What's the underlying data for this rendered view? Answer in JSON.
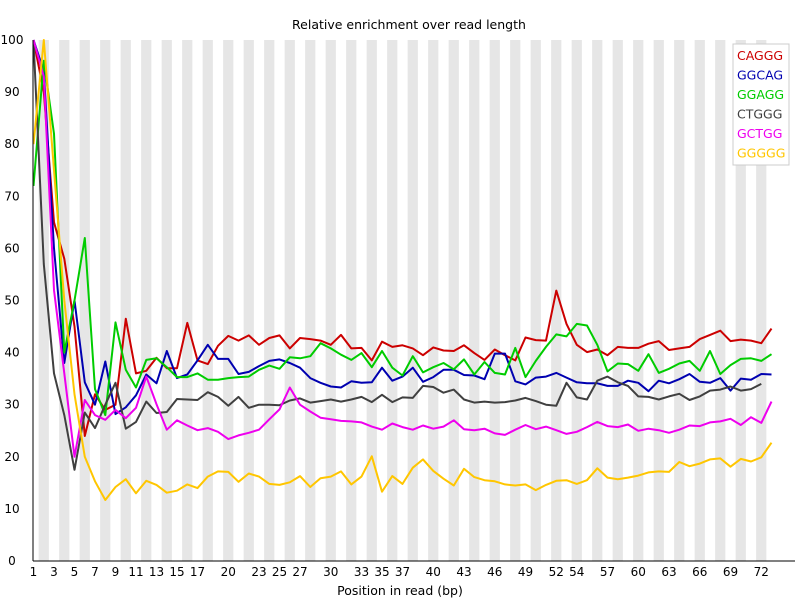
{
  "chart_data": {
    "type": "line",
    "title": "Relative enrichment over read length",
    "xlabel": "Position in read (bp)",
    "ylabel": "",
    "xlim": [
      1,
      72
    ],
    "ylim": [
      0,
      100
    ],
    "grid": "alternating vertical bands",
    "legend_position": "top-right",
    "x_tick_labels": [
      {
        "pos": 1,
        "label": "1"
      },
      {
        "pos": 3,
        "label": "3"
      },
      {
        "pos": 5,
        "label": "5"
      },
      {
        "pos": 7,
        "label": "7"
      },
      {
        "pos": 9,
        "label": "9"
      },
      {
        "pos": 11,
        "label": "11"
      },
      {
        "pos": 13,
        "label": "13"
      },
      {
        "pos": 15,
        "label": "15"
      },
      {
        "pos": 17,
        "label": "17"
      },
      {
        "pos": 20,
        "label": "20"
      },
      {
        "pos": 23,
        "label": "23"
      },
      {
        "pos": 25,
        "label": "25"
      },
      {
        "pos": 27,
        "label": "27"
      },
      {
        "pos": 30,
        "label": "30"
      },
      {
        "pos": 33,
        "label": "33"
      },
      {
        "pos": 35,
        "label": "35"
      },
      {
        "pos": 37,
        "label": "37"
      },
      {
        "pos": 40,
        "label": "40"
      },
      {
        "pos": 43,
        "label": "43"
      },
      {
        "pos": 46,
        "label": "46"
      },
      {
        "pos": 49,
        "label": "49"
      },
      {
        "pos": 52,
        "label": "52"
      },
      {
        "pos": 54,
        "label": "54"
      },
      {
        "pos": 57,
        "label": "57"
      },
      {
        "pos": 60,
        "label": "60"
      },
      {
        "pos": 63,
        "label": "63"
      },
      {
        "pos": 66,
        "label": "66"
      },
      {
        "pos": 69,
        "label": "69"
      },
      {
        "pos": 72,
        "label": "72"
      }
    ],
    "y_ticks": [
      0,
      10,
      20,
      30,
      40,
      50,
      60,
      70,
      80,
      90,
      100
    ],
    "series": [
      {
        "name": "CAGGG",
        "color": "#cc0000",
        "values": [
          100,
          90,
          65,
          58,
          45,
          24,
          32,
          29,
          30,
          46.5,
          36,
          36.5,
          39,
          37,
          37,
          45.7,
          38.5,
          37.8,
          41.3,
          43.2,
          42.3,
          43.3,
          41.5,
          42.8,
          43.3,
          40.8,
          42.8,
          42.6,
          42.3,
          41.5,
          43.4,
          40.8,
          40.9,
          38.5,
          42.1,
          41.1,
          41.4,
          40.8,
          39.5,
          41,
          40.4,
          40.3,
          41.4,
          39.9,
          38.6,
          40.6,
          39.5,
          38.5,
          42.9,
          42.4,
          42.3,
          51.9,
          45.5,
          41.5,
          40.1,
          40.6,
          39.5,
          41.1,
          40.9,
          40.9,
          41.7,
          42.2,
          40.5,
          40.8,
          41.1,
          42.6,
          43.4,
          44.2,
          42.2,
          42.5,
          42.3,
          41.8,
          44.6
        ]
      },
      {
        "name": "GGCAG",
        "color": "#0000b0",
        "values": [
          100,
          94,
          60,
          38,
          50,
          34.3,
          30,
          38.3,
          28.2,
          29.5,
          31.8,
          35.8,
          34.1,
          40.3,
          35.1,
          35.8,
          38.5,
          41.5,
          38.8,
          38.8,
          35.9,
          36.3,
          37.4,
          38.4,
          38.7,
          38,
          37.1,
          35.1,
          34.2,
          33.5,
          33.3,
          34.5,
          34.2,
          34.3,
          37.1,
          34.6,
          35.4,
          37.1,
          34.4,
          35.3,
          36.7,
          36.7,
          35.7,
          35.6,
          34.9,
          39.8,
          39.8,
          34.5,
          33.9,
          35.2,
          35.4,
          36.1,
          35.2,
          34.3,
          34.1,
          34.1,
          33.6,
          33.6,
          34.6,
          34.2,
          32.6,
          34.6,
          34.1,
          34.9,
          35.9,
          34.4,
          34.2,
          35.1,
          32.7,
          35,
          34.8,
          35.9,
          35.8
        ]
      },
      {
        "name": "GGAGG",
        "color": "#00cc00",
        "values": [
          72,
          96,
          82,
          40,
          50,
          62,
          33,
          28,
          45.8,
          36.7,
          33.3,
          38.6,
          38.9,
          37.2,
          35.3,
          35.3,
          36,
          34.8,
          34.8,
          35.1,
          35.3,
          35.4,
          36.7,
          37.5,
          36.9,
          39.1,
          38.9,
          39.3,
          41.8,
          40.8,
          39.6,
          38.6,
          39.9,
          37.2,
          40.3,
          37.1,
          35.6,
          39.3,
          36.2,
          37.2,
          38,
          36.8,
          38.7,
          35.8,
          38.2,
          36.1,
          35.8,
          40.9,
          35.3,
          38.4,
          41.1,
          43.5,
          43.1,
          45.5,
          45.2,
          41.5,
          36.4,
          37.9,
          37.8,
          36.5,
          39.7,
          36.1,
          36.9,
          37.9,
          38.4,
          36.5,
          40.3,
          35.9,
          37.6,
          38.8,
          38.9,
          38.4,
          39.7
        ]
      },
      {
        "name": "CTGGG",
        "color": "#404040",
        "values": [
          100,
          57,
          36,
          28,
          17.5,
          28.5,
          25.5,
          30,
          34.2,
          25.4,
          26.7,
          30.6,
          28.4,
          28.6,
          31.1,
          31,
          30.9,
          32.4,
          31.5,
          29.8,
          31.5,
          29.4,
          30,
          30,
          29.9,
          30.8,
          31.2,
          30.4,
          30.7,
          31,
          30.6,
          31,
          31.5,
          30.5,
          31.9,
          30.5,
          31.4,
          31.3,
          33.6,
          33.4,
          32.3,
          32.9,
          31,
          30.4,
          30.6,
          30.4,
          30.5,
          30.8,
          31.3,
          30.7,
          30,
          29.8,
          34.2,
          31.4,
          31,
          34.6,
          35.4,
          34.3,
          33.6,
          31.6,
          31.5,
          31,
          31.6,
          32.1,
          30.9,
          31.6,
          32.7,
          32.9,
          33.5,
          32.7,
          33,
          34
        ]
      },
      {
        "name": "GCTGG",
        "color": "#ee00ee",
        "values": [
          100,
          93,
          52,
          36,
          20,
          30.9,
          28,
          27.1,
          29,
          27.4,
          29.4,
          35.4,
          30.1,
          25.2,
          27,
          26,
          25.1,
          25.5,
          24.8,
          23.4,
          24.1,
          24.6,
          25.2,
          27.2,
          29.1,
          33.3,
          30,
          28.7,
          27.5,
          27.2,
          26.9,
          26.8,
          26.6,
          25.8,
          25.2,
          26.4,
          25.7,
          25.2,
          26,
          25.4,
          25.8,
          27,
          25.3,
          25.1,
          25.4,
          24.5,
          24.2,
          25.2,
          26.1,
          25.3,
          25.8,
          25.1,
          24.4,
          24.8,
          25.7,
          26.7,
          25.9,
          25.7,
          26.2,
          25,
          25.4,
          25.1,
          24.6,
          25.2,
          26,
          25.9,
          26.6,
          26.8,
          27.3,
          26.1,
          27.6,
          26.5,
          30.6
        ]
      },
      {
        "name": "GGGGG",
        "color": "#ffc600",
        "values": [
          80,
          100,
          75,
          50,
          32,
          20,
          15.3,
          11.7,
          14.2,
          15.7,
          13,
          15.4,
          14.6,
          13.1,
          13.5,
          14.7,
          14,
          16.2,
          17.2,
          17.1,
          15.2,
          16.8,
          16.2,
          14.8,
          14.6,
          15.1,
          16.3,
          14.2,
          15.9,
          16.2,
          17.2,
          14.7,
          16.2,
          20.1,
          13.3,
          16.3,
          14.8,
          17.9,
          19.5,
          17.3,
          15.8,
          14.5,
          17.7,
          16.1,
          15.5,
          15.3,
          14.7,
          14.5,
          14.7,
          13.6,
          14.6,
          15.4,
          15.5,
          14.8,
          15.5,
          17.8,
          16,
          15.7,
          16,
          16.4,
          17,
          17.2,
          17.1,
          19,
          18.2,
          18.7,
          19.5,
          19.7,
          18.1,
          19.6,
          19.1,
          19.9,
          22.7
        ]
      }
    ]
  }
}
